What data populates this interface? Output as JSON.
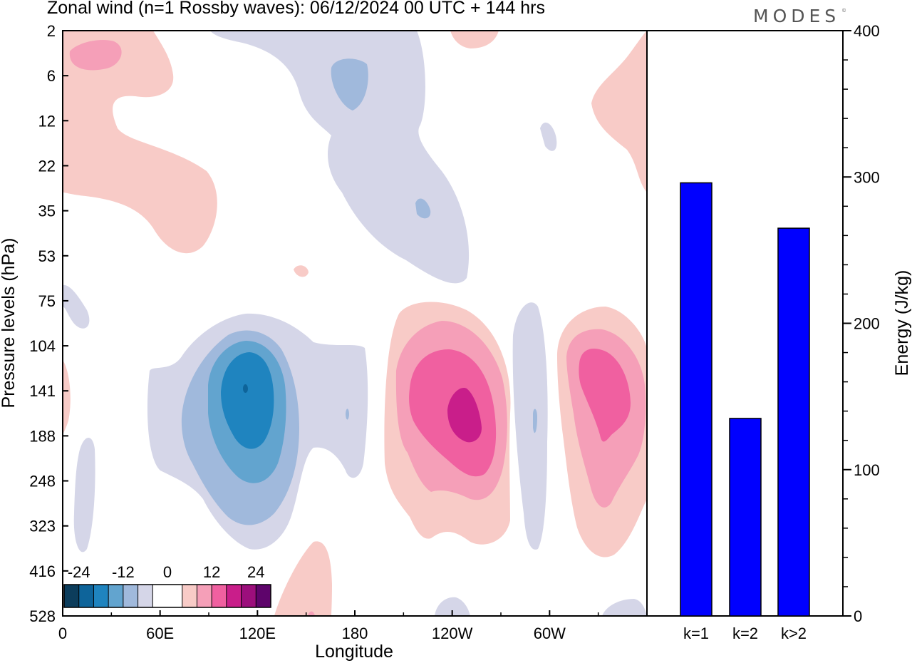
{
  "header": {
    "title": "Zonal wind (n=1 Rossby waves):  06/12/2024  00 UTC  + 144 hrs",
    "brand": "MODES",
    "brand_mark": "©"
  },
  "colors": {
    "neg4": "#0c3d5c",
    "neg3": "#0e649a",
    "neg2": "#1f84bf",
    "neg1": "#62a4cf",
    "neg0": "#a0b9dc",
    "negw": "#d5d6e8",
    "zero": "#ffffff",
    "posw": "#f8cbc7",
    "pos0": "#f59fb8",
    "pos1": "#f060a0",
    "pos2": "#c91e8a",
    "pos3": "#9c0e7c",
    "pos4": "#5e046b",
    "bar": "#0000ff"
  },
  "chart_data": [
    {
      "type": "contour",
      "ylabel": "Pressure levels (hPa)",
      "xlabel": "Longitude",
      "y_ticks": [
        "2",
        "6",
        "12",
        "22",
        "35",
        "53",
        "75",
        "104",
        "141",
        "188",
        "248",
        "323",
        "416",
        "528"
      ],
      "x_ticks": [
        "0",
        "60E",
        "120E",
        "180",
        "120W",
        "60W"
      ],
      "x_tick_values": [
        0,
        60,
        120,
        180,
        240,
        300
      ],
      "xlim": [
        0,
        360
      ],
      "colorbar_labels": [
        "-24",
        "-12",
        "0",
        "12",
        "24"
      ],
      "colorbar_colors": [
        "neg4",
        "neg3",
        "neg2",
        "neg1",
        "neg0",
        "negw",
        "zero",
        "zero",
        "posw",
        "pos0",
        "pos1",
        "pos2",
        "pos3",
        "pos4"
      ]
    },
    {
      "type": "bar",
      "categories": [
        "k=1",
        "k=2",
        "k>2"
      ],
      "values": [
        296,
        135,
        265
      ],
      "ylabel": "Energy (J/kg)",
      "ylim": [
        0,
        400
      ],
      "y_ticks": [
        0,
        100,
        200,
        300,
        400
      ],
      "y_minor_step": 20
    }
  ]
}
